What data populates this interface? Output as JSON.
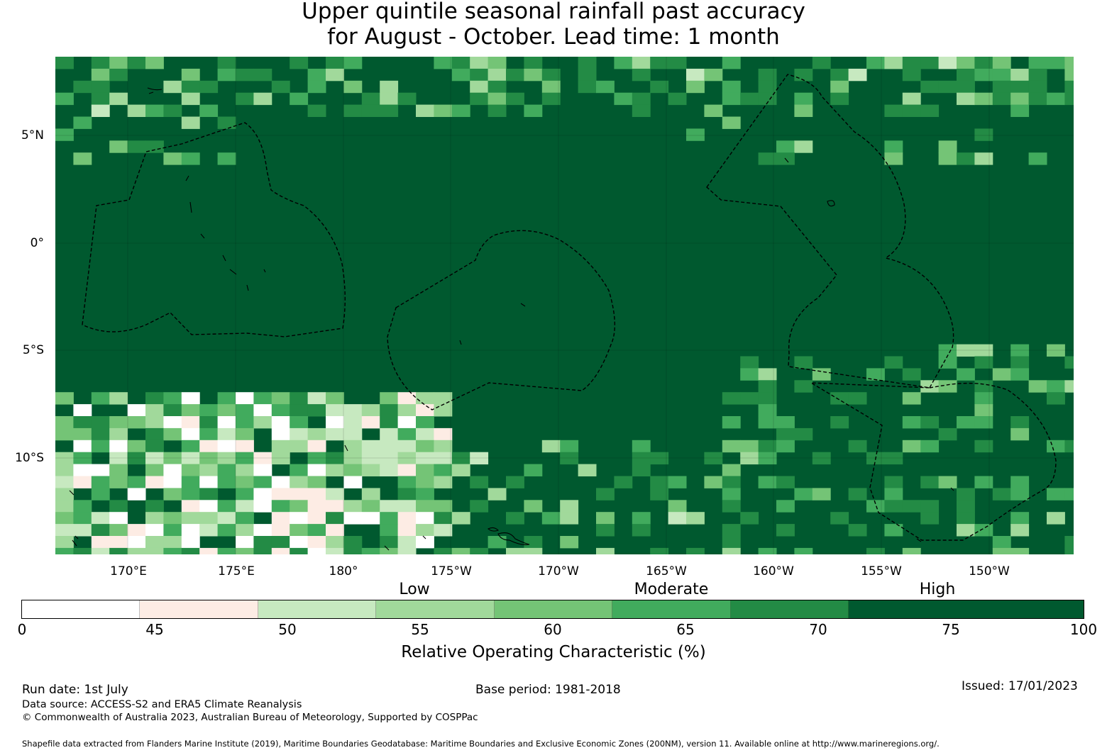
{
  "title": {
    "line1": "Upper quintile seasonal rainfall past accuracy",
    "line2": "for August - October. Lead time: 1 month"
  },
  "map": {
    "latitude_labels": [
      "5°N",
      "0°",
      "5°S",
      "10°S"
    ],
    "longitude_labels": [
      "170°E",
      "175°E",
      "180°",
      "175°W",
      "170°W",
      "165°W",
      "160°W",
      "155°W",
      "150°W"
    ],
    "dominant_color": "#00592f",
    "features": [
      "rainfall-accuracy-grid",
      "eez-boundaries-dashed",
      "island-coastlines",
      "graticule"
    ]
  },
  "legend": {
    "categories": [
      "Low",
      "Moderate",
      "High"
    ],
    "ticks": [
      "0",
      "45",
      "50",
      "55",
      "60",
      "65",
      "70",
      "75",
      "100"
    ],
    "bins": [
      {
        "from": 0,
        "to": 45,
        "color": "#ffffff"
      },
      {
        "from": 45,
        "to": 50,
        "color": "#fdece4"
      },
      {
        "from": 50,
        "to": 55,
        "color": "#c7e9c0"
      },
      {
        "from": 55,
        "to": 60,
        "color": "#a1d99b"
      },
      {
        "from": 60,
        "to": 65,
        "color": "#74c476"
      },
      {
        "from": 65,
        "to": 70,
        "color": "#41ab5d"
      },
      {
        "from": 70,
        "to": 75,
        "color": "#238b45"
      },
      {
        "from": 75,
        "to": 100,
        "color": "#00592f"
      }
    ],
    "label": "Relative Operating Characteristic (%)"
  },
  "footer": {
    "run_date": "Run date: 1st July",
    "base_period": "Base period: 1981-2018",
    "issued": "Issued: 17/01/2023",
    "data_source": "Data source: ACCESS-S2 and ERA5 Climate Reanalysis",
    "copyright": "© Commonwealth of Australia 2023, Australian Bureau of Meteorology, Supported by COSPPac",
    "shapefile": "Shapefile data extracted from Flanders Marine Institute (2019), Maritime Boundaries Geodatabase: Maritime Boundaries and Exclusive Economic Zones (200NM), version 11. Available online at http://www.marineregions.org/."
  }
}
